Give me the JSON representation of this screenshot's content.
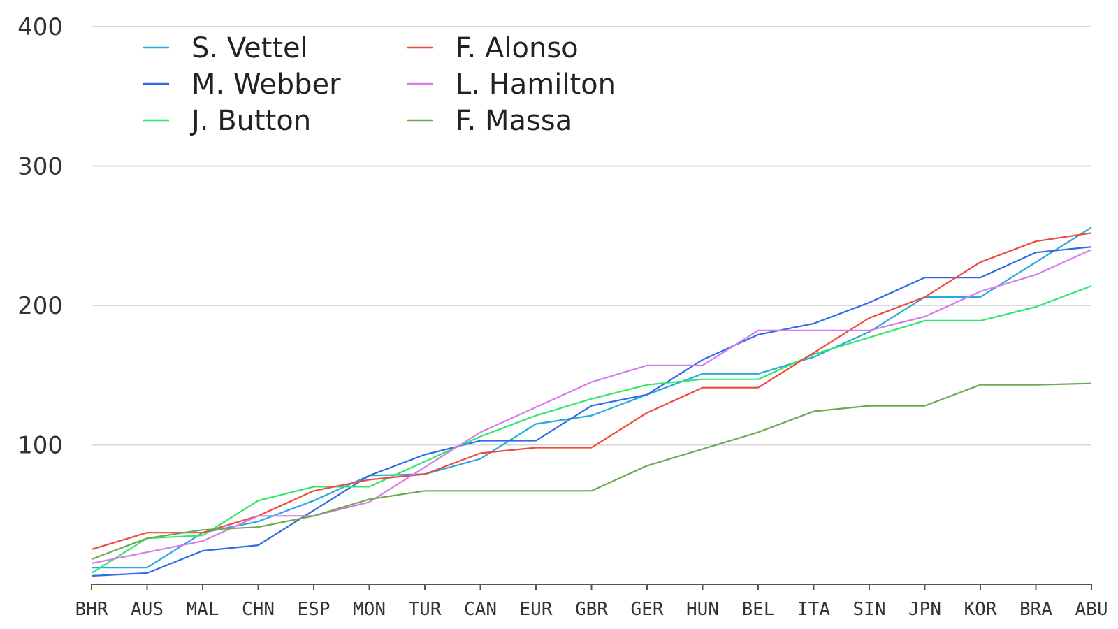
{
  "chart_data": {
    "type": "line",
    "title": "",
    "xlabel": "",
    "ylabel": "",
    "ylim": [
      0,
      400
    ],
    "yticks": [
      100,
      200,
      300,
      400
    ],
    "grid": "horizontal",
    "legend_position": "top-left",
    "categories": [
      "BHR",
      "AUS",
      "MAL",
      "CHN",
      "ESP",
      "MON",
      "TUR",
      "CAN",
      "EUR",
      "GBR",
      "GER",
      "HUN",
      "BEL",
      "ITA",
      "SIN",
      "JPN",
      "KOR",
      "BRA",
      "ABU"
    ],
    "series": [
      {
        "name": "S. Vettel",
        "color": "#29a8e0",
        "values": [
          12,
          12,
          37,
          45,
          60,
          78,
          79,
          90,
          115,
          121,
          136,
          151,
          151,
          163,
          181,
          206,
          206,
          231,
          256
        ]
      },
      {
        "name": "M. Webber",
        "color": "#2e6be6",
        "values": [
          6,
          8,
          24,
          28,
          53,
          78,
          93,
          103,
          103,
          128,
          136,
          161,
          179,
          187,
          202,
          220,
          220,
          238,
          242
        ]
      },
      {
        "name": "J. Button",
        "color": "#2ee86c",
        "values": [
          8,
          33,
          35,
          60,
          70,
          70,
          88,
          106,
          121,
          133,
          143,
          147,
          147,
          165,
          177,
          189,
          189,
          199,
          214
        ]
      },
      {
        "name": "F. Alonso",
        "color": "#f04a3a",
        "values": [
          25,
          37,
          37,
          49,
          67,
          75,
          79,
          94,
          98,
          98,
          123,
          141,
          141,
          166,
          191,
          206,
          231,
          246,
          252
        ]
      },
      {
        "name": "L. Hamilton",
        "color": "#d77bf0",
        "values": [
          15,
          23,
          31,
          49,
          49,
          59,
          84,
          109,
          127,
          145,
          157,
          157,
          182,
          182,
          182,
          192,
          210,
          222,
          240
        ]
      },
      {
        "name": "F. Massa",
        "color": "#6aaa52",
        "values": [
          18,
          33,
          39,
          41,
          49,
          61,
          67,
          67,
          67,
          67,
          85,
          97,
          109,
          124,
          128,
          128,
          143,
          143,
          144
        ]
      }
    ]
  }
}
